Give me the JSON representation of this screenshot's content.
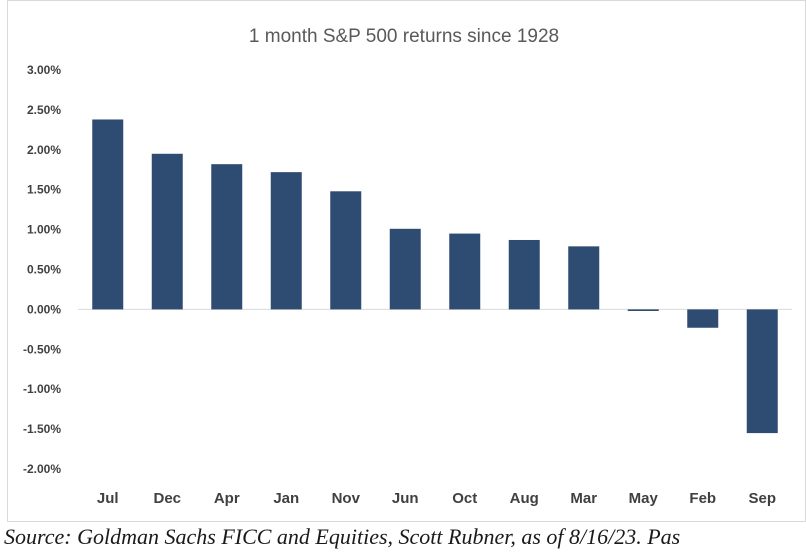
{
  "chart_data": {
    "type": "bar",
    "title": "1 month S&P 500 returns since 1928",
    "categories": [
      "Jul",
      "Dec",
      "Apr",
      "Jan",
      "Nov",
      "Jun",
      "Oct",
      "Aug",
      "Mar",
      "May",
      "Feb",
      "Sep"
    ],
    "values": [
      2.38,
      1.95,
      1.82,
      1.72,
      1.48,
      1.01,
      0.95,
      0.87,
      0.79,
      -0.02,
      -0.23,
      -1.55
    ],
    "ylim": [
      -2.0,
      3.0
    ],
    "yticks": [
      3.0,
      2.5,
      2.0,
      1.5,
      1.0,
      0.5,
      0.0,
      -0.5,
      -1.0,
      -1.5,
      -2.0
    ],
    "ytick_labels": [
      "3.00%",
      "2.50%",
      "2.00%",
      "1.50%",
      "1.00%",
      "0.50%",
      "0.00%",
      "-0.50%",
      "-1.00%",
      "-1.50%",
      "-2.00%"
    ],
    "bar_color": "#2e4b72",
    "grid": false,
    "legend": "none"
  },
  "source_text": "Source: Goldman Sachs FICC and Equities, Scott Rubner,  as of 8/16/23. Pas"
}
